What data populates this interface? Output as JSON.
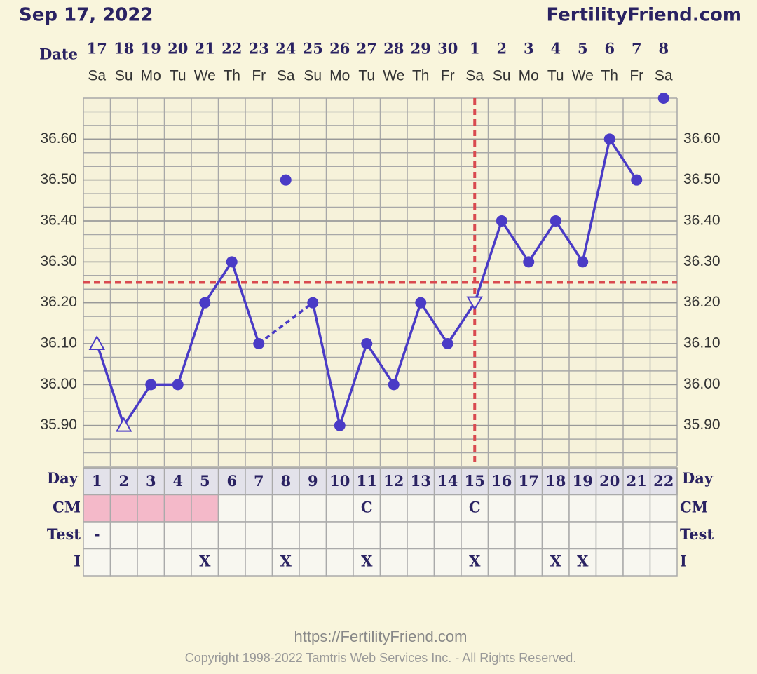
{
  "header": {
    "date": "Sep 17, 2022",
    "site": "FertilityFriend.com"
  },
  "chart_data": {
    "type": "line",
    "date_label": "Date",
    "dates": [
      17,
      18,
      19,
      20,
      21,
      22,
      23,
      24,
      25,
      26,
      27,
      28,
      29,
      30,
      1,
      2,
      3,
      4,
      5,
      6,
      7,
      8
    ],
    "weekdays": [
      "Sa",
      "Su",
      "Mo",
      "Tu",
      "We",
      "Th",
      "Fr",
      "Sa",
      "Su",
      "Mo",
      "Tu",
      "We",
      "Th",
      "Fr",
      "Sa",
      "Su",
      "Mo",
      "Tu",
      "We",
      "Th",
      "Fr",
      "Sa"
    ],
    "ylim": [
      35.8,
      36.7
    ],
    "yticks": [
      {
        "value": 35.9,
        "label": "35.90"
      },
      {
        "value": 36.0,
        "label": "36.00"
      },
      {
        "value": 36.1,
        "label": "36.10"
      },
      {
        "value": 36.2,
        "label": "36.20"
      },
      {
        "value": 36.3,
        "label": "36.30"
      },
      {
        "value": 36.4,
        "label": "36.40"
      },
      {
        "value": 36.5,
        "label": "36.50"
      },
      {
        "value": 36.6,
        "label": "36.60"
      }
    ],
    "series": [
      {
        "color": "#4a3bc6",
        "values": [
          36.1,
          35.9,
          36.0,
          36.0,
          36.2,
          36.3,
          36.1,
          36.5,
          36.2,
          35.9,
          36.1,
          36.0,
          36.2,
          36.1,
          36.2,
          36.4,
          36.3,
          36.4,
          36.3,
          36.6,
          36.5,
          36.7
        ],
        "markers": [
          "open-triangle",
          "open-triangle",
          "circle",
          "circle",
          "circle",
          "circle",
          "circle",
          "circle",
          "circle",
          "circle",
          "circle",
          "circle",
          "circle",
          "circle",
          "open-triangle-down",
          "circle",
          "circle",
          "circle",
          "circle",
          "circle",
          "circle",
          "circle"
        ],
        "connected": [
          true,
          true,
          true,
          true,
          true,
          true,
          true,
          false,
          true,
          true,
          true,
          true,
          true,
          true,
          true,
          true,
          true,
          true,
          true,
          true,
          true,
          false
        ]
      }
    ],
    "coverline": {
      "value": 36.25,
      "color": "#d94a50"
    },
    "ovulation_day": 15,
    "table": {
      "day_label": "Day",
      "days": [
        1,
        2,
        3,
        4,
        5,
        6,
        7,
        8,
        9,
        10,
        11,
        12,
        13,
        14,
        15,
        16,
        17,
        18,
        19,
        20,
        21,
        22
      ],
      "period_days": [
        1,
        2,
        3,
        4,
        5
      ],
      "period_color": "#f4b9c9",
      "rows": [
        {
          "label": "CM",
          "cells": [
            null,
            null,
            null,
            null,
            null,
            null,
            null,
            null,
            null,
            null,
            "C",
            null,
            null,
            null,
            "C",
            null,
            null,
            null,
            null,
            null,
            null,
            null
          ]
        },
        {
          "label": "Test",
          "cells": [
            "-",
            null,
            null,
            null,
            null,
            null,
            null,
            null,
            null,
            null,
            null,
            null,
            null,
            null,
            null,
            null,
            null,
            null,
            null,
            null,
            null,
            null
          ]
        },
        {
          "label": "I",
          "cells": [
            null,
            null,
            null,
            null,
            "X",
            null,
            null,
            "X",
            null,
            null,
            "X",
            null,
            null,
            null,
            "X",
            null,
            null,
            "X",
            "X",
            null,
            null,
            null
          ]
        }
      ]
    }
  },
  "footer": {
    "url": "https://FertilityFriend.com",
    "copyright": "Copyright 1998-2022 Tamtris Web Services Inc. - All Rights Reserved."
  }
}
